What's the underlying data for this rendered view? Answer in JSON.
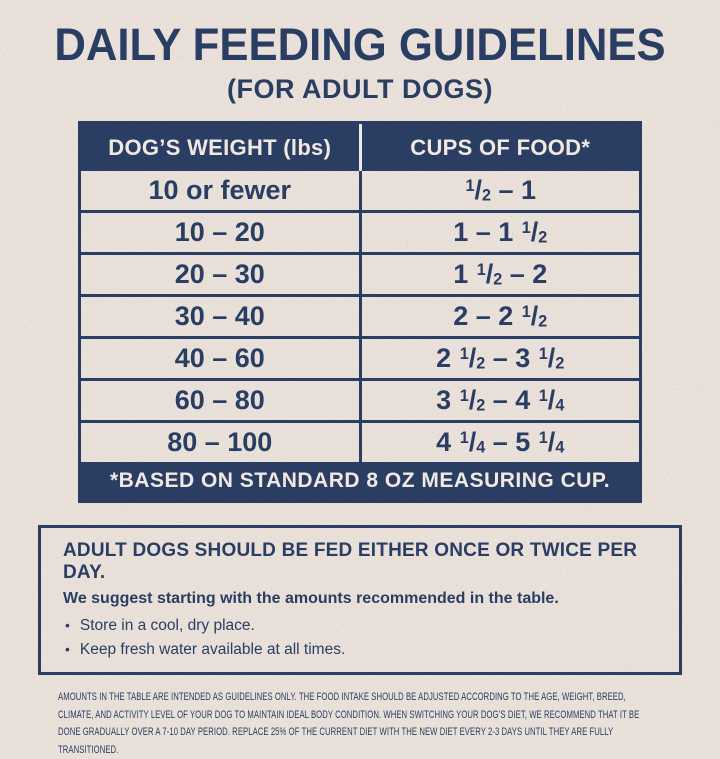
{
  "page": {
    "title": "DAILY FEEDING GUIDELINES",
    "subtitle": "(FOR ADULT DOGS)"
  },
  "table": {
    "header": [
      "DOG’S WEIGHT (lbs)",
      "CUPS OF FOOD*"
    ],
    "rows": [
      {
        "weight": "10 or fewer",
        "cups": "{1/2} – 1"
      },
      {
        "weight": "10 – 20",
        "cups": "1 – 1 {1/2}"
      },
      {
        "weight": "20 – 30",
        "cups": "1 {1/2} – 2"
      },
      {
        "weight": "30 – 40",
        "cups": "2 – 2 {1/2}"
      },
      {
        "weight": "40 – 60",
        "cups": "2 {1/2} – 3 {1/2}"
      },
      {
        "weight": "60 – 80",
        "cups": "3 {1/2} – 4 {1/4}"
      },
      {
        "weight": "80 – 100",
        "cups": "4 {1/4} – 5 {1/4}"
      }
    ],
    "footnote": "*BASED ON STANDARD 8 OZ MEASURING CUP."
  },
  "info_box": {
    "heading": "ADULT DOGS SHOULD BE FED EITHER ONCE OR TWICE PER DAY.",
    "subheading": "We suggest starting with the amounts recommended in the table.",
    "bullet_icon": "•",
    "bullets": [
      "Store in a cool, dry place.",
      "Keep fresh water available at all times."
    ]
  },
  "disclaimer": "AMOUNTS IN THE TABLE ARE INTENDED AS GUIDELINES ONLY. THE FOOD INTAKE SHOULD BE ADJUSTED ACCORDING TO THE AGE, WEIGHT, BREED, CLIMATE, AND ACTIVITY LEVEL OF YOUR DOG TO MAINTAIN IDEAL BODY CONDITION. WHEN SWITCHING YOUR DOG’S DIET, WE RECOMMEND THAT IT BE DONE GRADUALLY OVER A 7-10 DAY PERIOD. REPLACE 25% OF THE CURRENT DIET WITH THE NEW DIET EVERY 2-3 DAYS UNTIL THEY ARE FULLY TRANSITIONED.",
  "colors": {
    "navy": "#293e62",
    "cream": "#f1e9e1",
    "background": "#e9e0da"
  }
}
